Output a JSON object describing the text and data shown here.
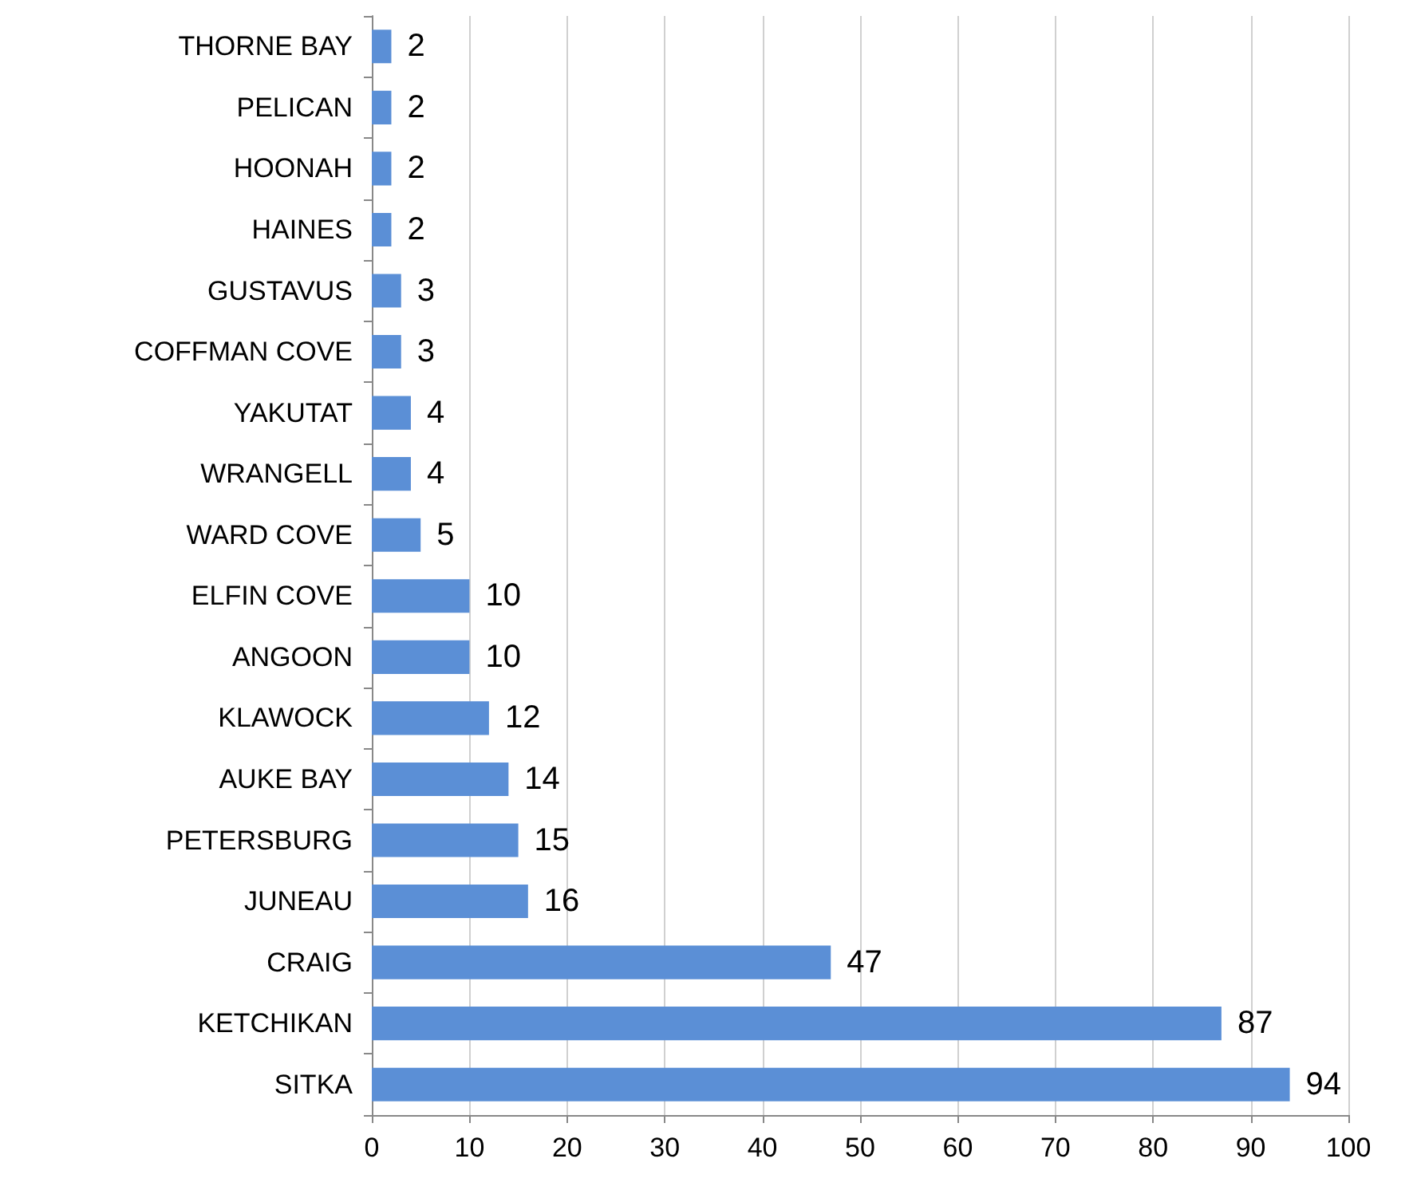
{
  "chart_data": {
    "type": "bar",
    "orientation": "horizontal",
    "categories": [
      "THORNE BAY",
      "PELICAN",
      "HOONAH",
      "HAINES",
      "GUSTAVUS",
      "COFFMAN COVE",
      "YAKUTAT",
      "WRANGELL",
      "WARD COVE",
      "ELFIN COVE",
      "ANGOON",
      "KLAWOCK",
      "AUKE BAY",
      "PETERSBURG",
      "JUNEAU",
      "CRAIG",
      "KETCHIKAN",
      "SITKA"
    ],
    "values": [
      2,
      2,
      2,
      2,
      3,
      3,
      4,
      4,
      5,
      10,
      10,
      12,
      14,
      15,
      16,
      47,
      87,
      94
    ],
    "color": "#5b8fd6",
    "xlim": [
      0,
      100
    ],
    "xticks": [
      0,
      10,
      20,
      30,
      40,
      50,
      60,
      70,
      80,
      90,
      100
    ],
    "grid": "x",
    "data_labels": true
  }
}
